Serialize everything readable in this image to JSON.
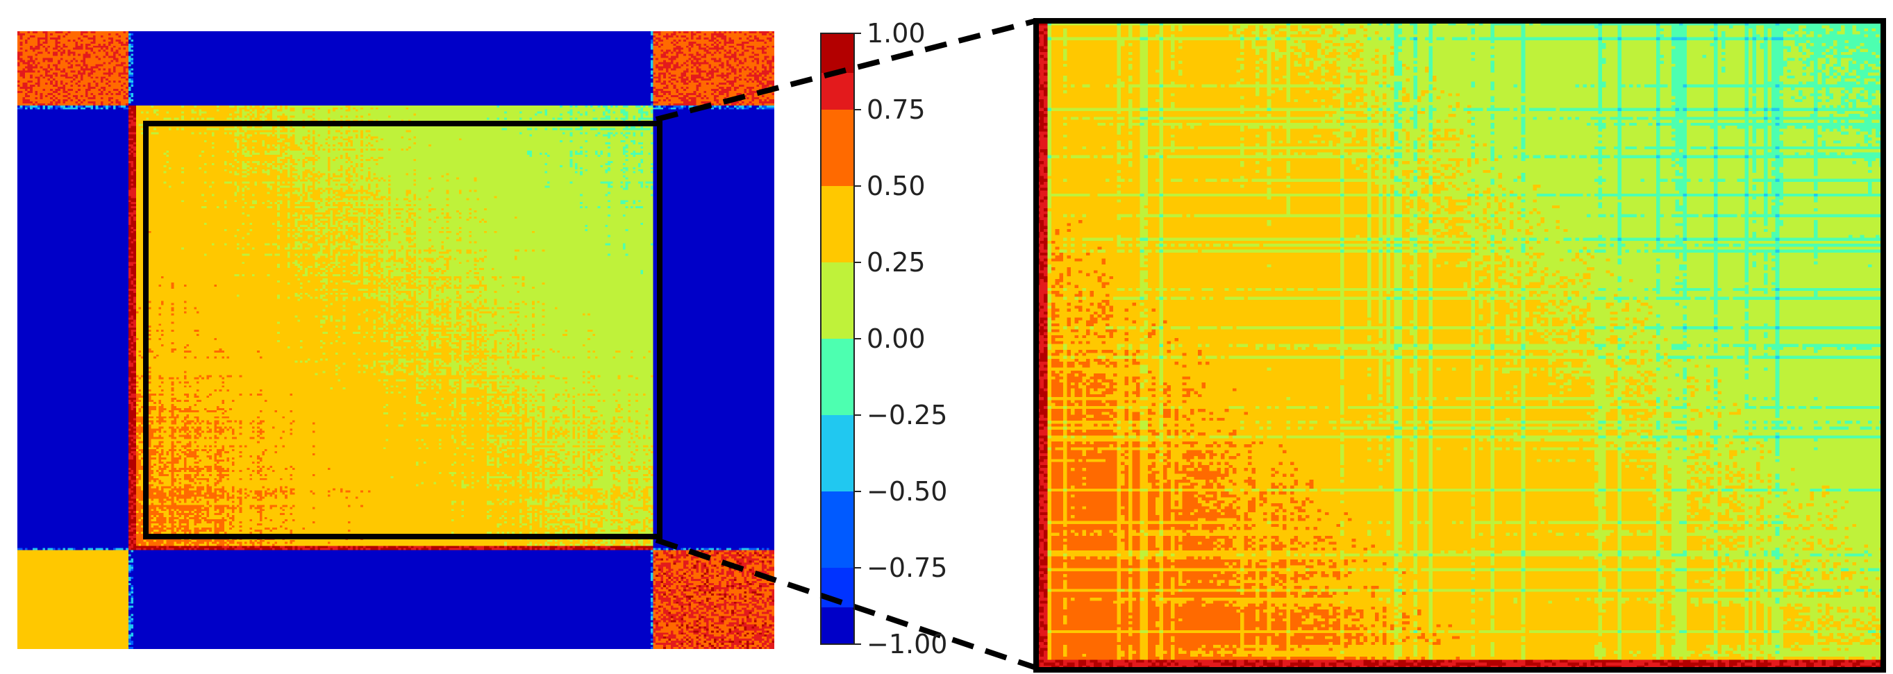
{
  "chart_data": [
    {
      "type": "heatmap",
      "title": "",
      "description_role": "full correlation matrix with highlighted central block",
      "n": 300,
      "blocks": {
        "boundaries_fraction": [
          0.145,
          0.84
        ],
        "corner_blocks": [
          {
            "rows": "top",
            "cols": "left",
            "value_range": [
              0.5,
              1.0
            ]
          },
          {
            "rows": "top",
            "cols": "right",
            "value_range": [
              0.5,
              1.0
            ]
          },
          {
            "rows": "bottom",
            "cols": "left",
            "value_range": [
              0.25,
              0.5
            ]
          },
          {
            "rows": "bottom",
            "cols": "right",
            "value_range": [
              0.5,
              1.0
            ]
          }
        ],
        "off_diagonal_value": -1.0,
        "central_block_value_range": [
          -0.25,
          0.75
        ]
      },
      "highlight_box": {
        "rows_fraction": [
          0.12,
          0.71
        ],
        "cols_fraction": [
          0.145,
          0.84
        ],
        "color": "#000000"
      }
    },
    {
      "type": "heatmap",
      "title": "",
      "description_role": "zoomed view of highlighted central block",
      "n": 220,
      "value_range": [
        -0.25,
        1.0
      ],
      "gradient": "higher values toward bottom-left, lower values toward top-right"
    }
  ],
  "colorbar": {
    "ticks": [
      "1.00",
      "0.75",
      "0.50",
      "0.25",
      "0.00",
      "−0.25",
      "−0.50",
      "−0.75",
      "−1.00"
    ],
    "min": -1.0,
    "max": 1.0,
    "levels": [
      {
        "from": 0.875,
        "to": 1.0,
        "color": "#b30000"
      },
      {
        "from": 0.75,
        "to": 0.875,
        "color": "#e31a1c"
      },
      {
        "from": 0.5,
        "to": 0.75,
        "color": "#ff6a00"
      },
      {
        "from": 0.25,
        "to": 0.5,
        "color": "#ffc800"
      },
      {
        "from": 0.0,
        "to": 0.25,
        "color": "#bff23a"
      },
      {
        "from": -0.25,
        "to": 0.0,
        "color": "#4dffb0"
      },
      {
        "from": -0.5,
        "to": -0.25,
        "color": "#21c8f0"
      },
      {
        "from": -0.75,
        "to": -0.5,
        "color": "#005aff"
      },
      {
        "from": -0.875,
        "to": -0.75,
        "color": "#0033ff"
      },
      {
        "from": -1.0,
        "to": -0.875,
        "color": "#0000c8"
      }
    ]
  },
  "colors": {
    "frame": "#000000",
    "connector": "#000000"
  }
}
